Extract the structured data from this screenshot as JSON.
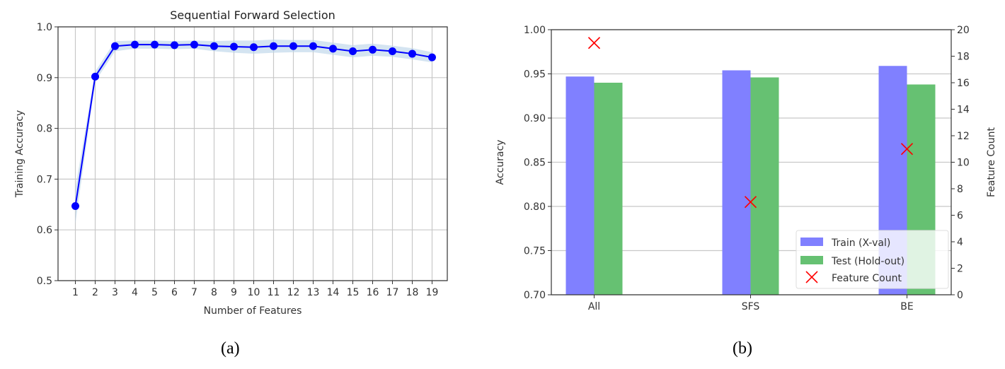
{
  "chart_data": [
    {
      "type": "line",
      "title": "Sequential Forward Selection",
      "xlabel": "Number of Features",
      "ylabel": "Training Accuracy",
      "x": [
        1,
        2,
        3,
        4,
        5,
        6,
        7,
        8,
        9,
        10,
        11,
        12,
        13,
        14,
        15,
        16,
        17,
        18,
        19
      ],
      "values": [
        0.647,
        0.902,
        0.962,
        0.965,
        0.965,
        0.964,
        0.965,
        0.962,
        0.961,
        0.96,
        0.962,
        0.962,
        0.962,
        0.957,
        0.952,
        0.955,
        0.952,
        0.947,
        0.94
      ],
      "band": [
        0.035,
        0.01,
        0.01,
        0.008,
        0.008,
        0.008,
        0.008,
        0.01,
        0.012,
        0.013,
        0.013,
        0.012,
        0.012,
        0.012,
        0.012,
        0.012,
        0.011,
        0.011,
        0.01
      ],
      "ylim": [
        0.5,
        1.0
      ],
      "yticks": [
        "0.5",
        "0.6",
        "0.7",
        "0.8",
        "0.9",
        "1.0"
      ],
      "grid": true,
      "color": "#0000ff",
      "band_color": "#b8d2e8"
    },
    {
      "type": "bar",
      "categories": [
        "All",
        "SFS",
        "BE"
      ],
      "series": [
        {
          "name": "Train (X-val)",
          "values": [
            0.947,
            0.954,
            0.959
          ],
          "color": "#8080ff"
        },
        {
          "name": "Test (Hold-out)",
          "values": [
            0.94,
            0.946,
            0.938
          ],
          "color": "#66c172"
        }
      ],
      "secondary": {
        "name": "Feature Count",
        "values": [
          19,
          7,
          11
        ],
        "color": "#ff0000",
        "ylim": [
          0,
          20
        ],
        "yticks": [
          "0",
          "2",
          "4",
          "6",
          "8",
          "10",
          "12",
          "14",
          "16",
          "18",
          "20"
        ]
      },
      "ylabel": "Accuracy",
      "y2label": "Feature Count",
      "ylim": [
        0.7,
        1.0
      ],
      "yticks": [
        "0.70",
        "0.75",
        "0.80",
        "0.85",
        "0.90",
        "0.95",
        "1.00"
      ],
      "grid": true,
      "legend": "bottom-right"
    }
  ],
  "captions": [
    "(a)",
    "(b)"
  ]
}
